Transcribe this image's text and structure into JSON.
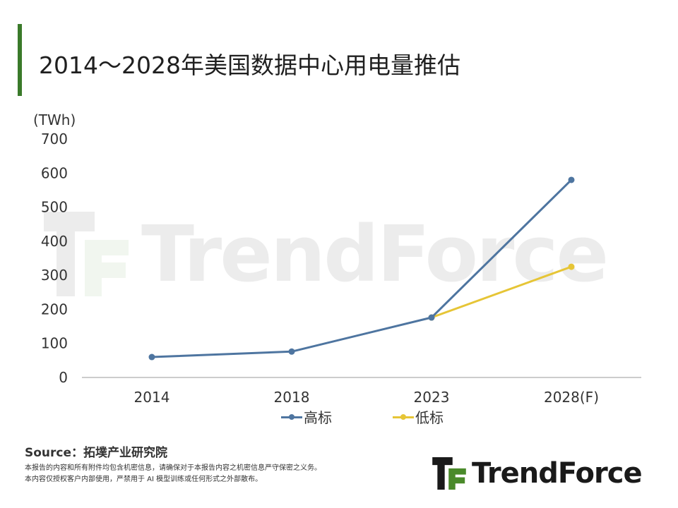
{
  "header": {
    "title": "2014～2028年美国数据中心用电量推估"
  },
  "chart_data": {
    "type": "line",
    "title": "2014～2028年美国数据中心用电量推估",
    "ylabel": "(TWh)",
    "xlabel": "",
    "categories": [
      "2014",
      "2018",
      "2023",
      "2028(F)"
    ],
    "y_ticks": [
      "0",
      "100",
      "200",
      "300",
      "400",
      "500",
      "600",
      "700"
    ],
    "ylim": [
      0,
      700
    ],
    "grid": false,
    "legend_position": "bottom",
    "series": [
      {
        "name": "高标",
        "color": "#4e75a0",
        "values": [
          60,
          76,
          176,
          580
        ]
      },
      {
        "name": "低标",
        "color": "#e6c536",
        "values": [
          null,
          null,
          176,
          325
        ]
      }
    ]
  },
  "footer": {
    "source": "Source：拓墣产业研究院",
    "disclaimer_line1": "本报告的内容和所有附件均包含机密信息，请确保对于本报告内容之机密信息严守保密之义务。",
    "disclaimer_line2": "本内容仅授权客户内部使用，严禁用于 AI 模型训练或任何形式之外部散布。",
    "logo_text": "TrendForce"
  },
  "colors": {
    "accent_bar": "#3a7a2a",
    "axis": "#999999"
  }
}
